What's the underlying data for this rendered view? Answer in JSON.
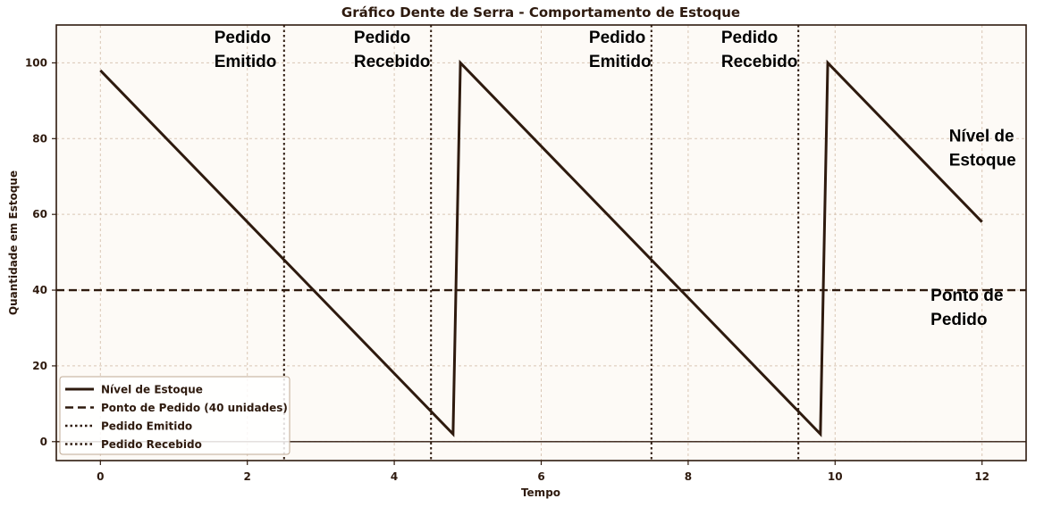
{
  "colors": {
    "background": "#ffffff",
    "plot_background": "#fdfaf6",
    "ink": "#2e1a0e",
    "grid": "#d9c6b5"
  },
  "chart_data": {
    "type": "line",
    "title": "Gráfico Dente de Serra - Comportamento de Estoque",
    "xlabel": "Tempo",
    "ylabel": "Quantidade em Estoque",
    "xlim": [
      -0.6,
      12.6
    ],
    "ylim": [
      -5,
      110
    ],
    "xticks": [
      0,
      2,
      4,
      6,
      8,
      10,
      12
    ],
    "yticks": [
      0,
      20,
      40,
      60,
      80,
      100
    ],
    "grid": true,
    "series": [
      {
        "name": "Nível de Estoque",
        "style": "solid",
        "x": [
          0,
          4.8,
          4.9,
          9.8,
          9.9,
          12
        ],
        "y": [
          98,
          2,
          100,
          2,
          100,
          58
        ]
      },
      {
        "name": "Ponto de Pedido (40 unidades)",
        "style": "dashed",
        "y_const": 40
      },
      {
        "name": "Pedido Emitido",
        "style": "dotted",
        "x_const": [
          2.5,
          7.5
        ]
      },
      {
        "name": "Pedido Recebido",
        "style": "dotted",
        "x_const": [
          4.5,
          9.5
        ]
      }
    ],
    "baseline_y": 0,
    "annotations": [
      {
        "lines": [
          "Pedido",
          "Emitido"
        ],
        "x": 1.55,
        "y": 105
      },
      {
        "lines": [
          "Pedido",
          "Recebido"
        ],
        "x": 3.45,
        "y": 105
      },
      {
        "lines": [
          "Pedido",
          "Emitido"
        ],
        "x": 6.65,
        "y": 105
      },
      {
        "lines": [
          "Pedido",
          "Recebido"
        ],
        "x": 8.45,
        "y": 105
      },
      {
        "lines": [
          "Nível de",
          "Estoque"
        ],
        "x": 11.55,
        "y": 79
      },
      {
        "lines": [
          "Ponto de",
          "Pedido"
        ],
        "x": 11.3,
        "y": 37
      }
    ],
    "legend_placement": "lower-left"
  }
}
